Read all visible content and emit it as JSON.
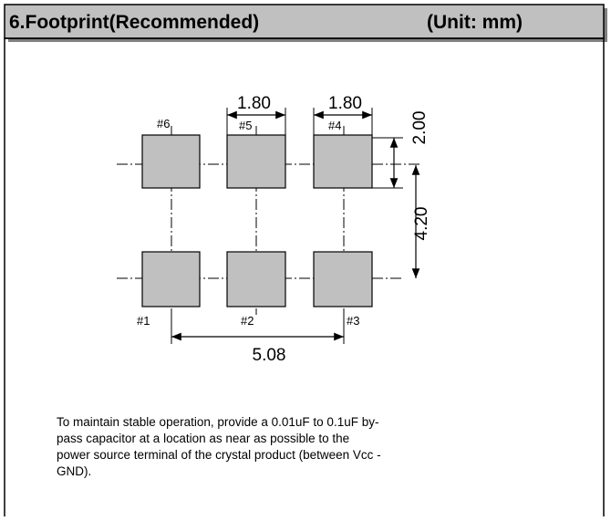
{
  "header": {
    "title": "6.Footprint(Recommended)",
    "unit": "(Unit: mm)"
  },
  "pads": [
    "#1",
    "#2",
    "#3",
    "#4",
    "#5",
    "#6"
  ],
  "dimensions": {
    "pad_width_5": "1.80",
    "pad_width_4": "1.80",
    "pad_height": "2.00",
    "row_pitch": "4.20",
    "column_span": "5.08"
  },
  "note": [
    "To maintain stable operation, provide a 0.01uF to 0.1uF by-",
    "pass capacitor at a location as near as possible to the",
    "power source terminal of the crystal product (between Vcc -",
    "GND)."
  ]
}
